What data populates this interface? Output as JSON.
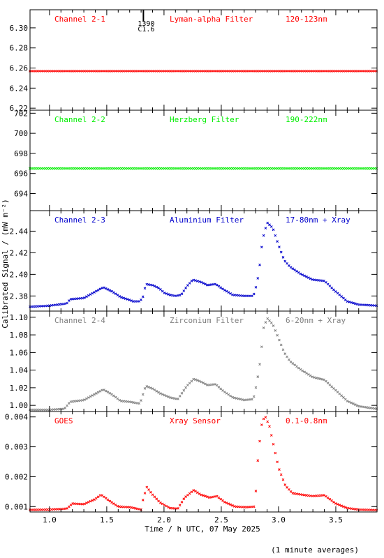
{
  "chart_data": {
    "type": "scatter",
    "xlabel": "Time / h UTC, 07 May 2025",
    "ylabel": "Calibrated Signal / (mW m⁻²)",
    "footnote": "(1 minute averages)",
    "xlim": [
      0.83,
      3.86
    ],
    "xticks": [
      "1.0",
      "1.5",
      "2.0",
      "2.5",
      "3.0",
      "3.5"
    ],
    "flare_marker": {
      "x": 1.82,
      "time": "1390",
      "class": "C1.6"
    },
    "panels": [
      {
        "channel": "Channel 2-1",
        "filter": "Lyman-alpha Filter",
        "band": "120-123nm",
        "color": "#ff0000",
        "ylim": [
          6.218,
          6.318
        ],
        "yticks": [
          "6.22",
          "6.24",
          "6.26",
          "6.28",
          "6.30"
        ],
        "series": [
          {
            "x": 0.83,
            "y": 6.257
          },
          {
            "x": 1.5,
            "y": 6.257
          },
          {
            "x": 2.0,
            "y": 6.257
          },
          {
            "x": 2.5,
            "y": 6.257
          },
          {
            "x": 3.0,
            "y": 6.257
          },
          {
            "x": 3.5,
            "y": 6.257
          },
          {
            "x": 3.86,
            "y": 6.257
          }
        ]
      },
      {
        "channel": "Channel 2-2",
        "filter": "Herzberg Filter",
        "band": "190-222nm",
        "color": "#00ee00",
        "ylim": [
          692.3,
          702.3
        ],
        "yticks": [
          "694",
          "696",
          "698",
          "700",
          "702"
        ],
        "series": [
          {
            "x": 0.83,
            "y": 696.5
          },
          {
            "x": 1.5,
            "y": 696.5
          },
          {
            "x": 2.0,
            "y": 696.5
          },
          {
            "x": 2.5,
            "y": 696.5
          },
          {
            "x": 3.0,
            "y": 696.5
          },
          {
            "x": 3.5,
            "y": 696.5
          },
          {
            "x": 3.86,
            "y": 696.5
          }
        ]
      },
      {
        "channel": "Channel 2-3",
        "filter": "Aluminium Filter",
        "band": "17-80nm + Xray",
        "color": "#0000cc",
        "ylim": [
          2.366,
          2.459
        ],
        "yticks": [
          "2.38",
          "2.40",
          "2.42",
          "2.44"
        ],
        "series": [
          {
            "x": 0.83,
            "y": 2.37
          },
          {
            "x": 1.0,
            "y": 2.371
          },
          {
            "x": 1.15,
            "y": 2.373
          },
          {
            "x": 1.18,
            "y": 2.377
          },
          {
            "x": 1.3,
            "y": 2.378
          },
          {
            "x": 1.4,
            "y": 2.384
          },
          {
            "x": 1.47,
            "y": 2.388
          },
          {
            "x": 1.55,
            "y": 2.384
          },
          {
            "x": 1.62,
            "y": 2.379
          },
          {
            "x": 1.68,
            "y": 2.377
          },
          {
            "x": 1.73,
            "y": 2.375
          },
          {
            "x": 1.79,
            "y": 2.375
          },
          {
            "x": 1.82,
            "y": 2.38
          },
          {
            "x": 1.84,
            "y": 2.391
          },
          {
            "x": 1.9,
            "y": 2.39
          },
          {
            "x": 1.96,
            "y": 2.387
          },
          {
            "x": 2.0,
            "y": 2.383
          },
          {
            "x": 2.05,
            "y": 2.381
          },
          {
            "x": 2.1,
            "y": 2.38
          },
          {
            "x": 2.15,
            "y": 2.381
          },
          {
            "x": 2.2,
            "y": 2.389
          },
          {
            "x": 2.25,
            "y": 2.395
          },
          {
            "x": 2.32,
            "y": 2.393
          },
          {
            "x": 2.38,
            "y": 2.39
          },
          {
            "x": 2.45,
            "y": 2.391
          },
          {
            "x": 2.52,
            "y": 2.386
          },
          {
            "x": 2.6,
            "y": 2.381
          },
          {
            "x": 2.7,
            "y": 2.38
          },
          {
            "x": 2.78,
            "y": 2.38
          },
          {
            "x": 2.81,
            "y": 2.391
          },
          {
            "x": 2.83,
            "y": 2.403
          },
          {
            "x": 2.86,
            "y": 2.432
          },
          {
            "x": 2.9,
            "y": 2.448
          },
          {
            "x": 2.95,
            "y": 2.443
          },
          {
            "x": 3.0,
            "y": 2.427
          },
          {
            "x": 3.05,
            "y": 2.413
          },
          {
            "x": 3.1,
            "y": 2.407
          },
          {
            "x": 3.2,
            "y": 2.4
          },
          {
            "x": 3.3,
            "y": 2.395
          },
          {
            "x": 3.4,
            "y": 2.394
          },
          {
            "x": 3.5,
            "y": 2.384
          },
          {
            "x": 3.6,
            "y": 2.375
          },
          {
            "x": 3.7,
            "y": 2.372
          },
          {
            "x": 3.86,
            "y": 2.371
          }
        ]
      },
      {
        "channel": "Channel 2-4",
        "filter": "Zirconium Filter",
        "band": "6-20nm + Xray",
        "color": "#808080",
        "ylim": [
          0.993,
          1.107
        ],
        "yticks": [
          "1.00",
          "1.02",
          "1.04",
          "1.06",
          "1.08",
          "1.10"
        ],
        "series": [
          {
            "x": 0.83,
            "y": 0.995
          },
          {
            "x": 1.0,
            "y": 0.995
          },
          {
            "x": 1.13,
            "y": 0.996
          },
          {
            "x": 1.18,
            "y": 1.004
          },
          {
            "x": 1.3,
            "y": 1.006
          },
          {
            "x": 1.4,
            "y": 1.013
          },
          {
            "x": 1.47,
            "y": 1.018
          },
          {
            "x": 1.55,
            "y": 1.012
          },
          {
            "x": 1.62,
            "y": 1.005
          },
          {
            "x": 1.7,
            "y": 1.004
          },
          {
            "x": 1.79,
            "y": 1.002
          },
          {
            "x": 1.84,
            "y": 1.022
          },
          {
            "x": 1.9,
            "y": 1.019
          },
          {
            "x": 1.96,
            "y": 1.014
          },
          {
            "x": 2.05,
            "y": 1.009
          },
          {
            "x": 2.12,
            "y": 1.007
          },
          {
            "x": 2.2,
            "y": 1.022
          },
          {
            "x": 2.26,
            "y": 1.03
          },
          {
            "x": 2.32,
            "y": 1.027
          },
          {
            "x": 2.38,
            "y": 1.023
          },
          {
            "x": 2.45,
            "y": 1.024
          },
          {
            "x": 2.52,
            "y": 1.016
          },
          {
            "x": 2.6,
            "y": 1.009
          },
          {
            "x": 2.7,
            "y": 1.006
          },
          {
            "x": 2.78,
            "y": 1.007
          },
          {
            "x": 2.81,
            "y": 1.025
          },
          {
            "x": 2.84,
            "y": 1.05
          },
          {
            "x": 2.87,
            "y": 1.088
          },
          {
            "x": 2.9,
            "y": 1.099
          },
          {
            "x": 2.95,
            "y": 1.092
          },
          {
            "x": 3.0,
            "y": 1.076
          },
          {
            "x": 3.05,
            "y": 1.06
          },
          {
            "x": 3.1,
            "y": 1.05
          },
          {
            "x": 3.2,
            "y": 1.04
          },
          {
            "x": 3.3,
            "y": 1.032
          },
          {
            "x": 3.4,
            "y": 1.029
          },
          {
            "x": 3.5,
            "y": 1.017
          },
          {
            "x": 3.6,
            "y": 1.005
          },
          {
            "x": 3.7,
            "y": 0.999
          },
          {
            "x": 3.86,
            "y": 0.996
          }
        ]
      },
      {
        "channel": "GOES",
        "filter": "Xray Sensor",
        "band": "0.1-0.8nm",
        "color": "#ff0000",
        "ylim": [
          0.00082,
          0.00418
        ],
        "yticks": [
          "0.001",
          "0.002",
          "0.003",
          "0.004"
        ],
        "series": [
          {
            "x": 0.83,
            "y": 0.00089
          },
          {
            "x": 1.0,
            "y": 0.0009
          },
          {
            "x": 1.15,
            "y": 0.00093
          },
          {
            "x": 1.2,
            "y": 0.0011
          },
          {
            "x": 1.3,
            "y": 0.00108
          },
          {
            "x": 1.4,
            "y": 0.00125
          },
          {
            "x": 1.45,
            "y": 0.0014
          },
          {
            "x": 1.52,
            "y": 0.0012
          },
          {
            "x": 1.6,
            "y": 0.001
          },
          {
            "x": 1.7,
            "y": 0.00098
          },
          {
            "x": 1.8,
            "y": 0.0009
          },
          {
            "x": 1.82,
            "y": 0.0013
          },
          {
            "x": 1.85,
            "y": 0.00165
          },
          {
            "x": 1.9,
            "y": 0.0014
          },
          {
            "x": 1.96,
            "y": 0.00115
          },
          {
            "x": 2.05,
            "y": 0.00095
          },
          {
            "x": 2.12,
            "y": 0.00093
          },
          {
            "x": 2.18,
            "y": 0.0013
          },
          {
            "x": 2.26,
            "y": 0.00155
          },
          {
            "x": 2.32,
            "y": 0.0014
          },
          {
            "x": 2.4,
            "y": 0.0013
          },
          {
            "x": 2.46,
            "y": 0.00135
          },
          {
            "x": 2.53,
            "y": 0.00115
          },
          {
            "x": 2.62,
            "y": 0.001
          },
          {
            "x": 2.72,
            "y": 0.00098
          },
          {
            "x": 2.79,
            "y": 0.001
          },
          {
            "x": 2.8,
            "y": 0.0014
          },
          {
            "x": 2.82,
            "y": 0.0026
          },
          {
            "x": 2.85,
            "y": 0.0037
          },
          {
            "x": 2.88,
            "y": 0.00405
          },
          {
            "x": 2.92,
            "y": 0.0037
          },
          {
            "x": 2.96,
            "y": 0.003
          },
          {
            "x": 3.0,
            "y": 0.0023
          },
          {
            "x": 3.06,
            "y": 0.0017
          },
          {
            "x": 3.12,
            "y": 0.00145
          },
          {
            "x": 3.2,
            "y": 0.0014
          },
          {
            "x": 3.3,
            "y": 0.00135
          },
          {
            "x": 3.4,
            "y": 0.00138
          },
          {
            "x": 3.5,
            "y": 0.0011
          },
          {
            "x": 3.6,
            "y": 0.00095
          },
          {
            "x": 3.7,
            "y": 0.0009
          },
          {
            "x": 3.86,
            "y": 0.00088
          }
        ]
      }
    ]
  }
}
